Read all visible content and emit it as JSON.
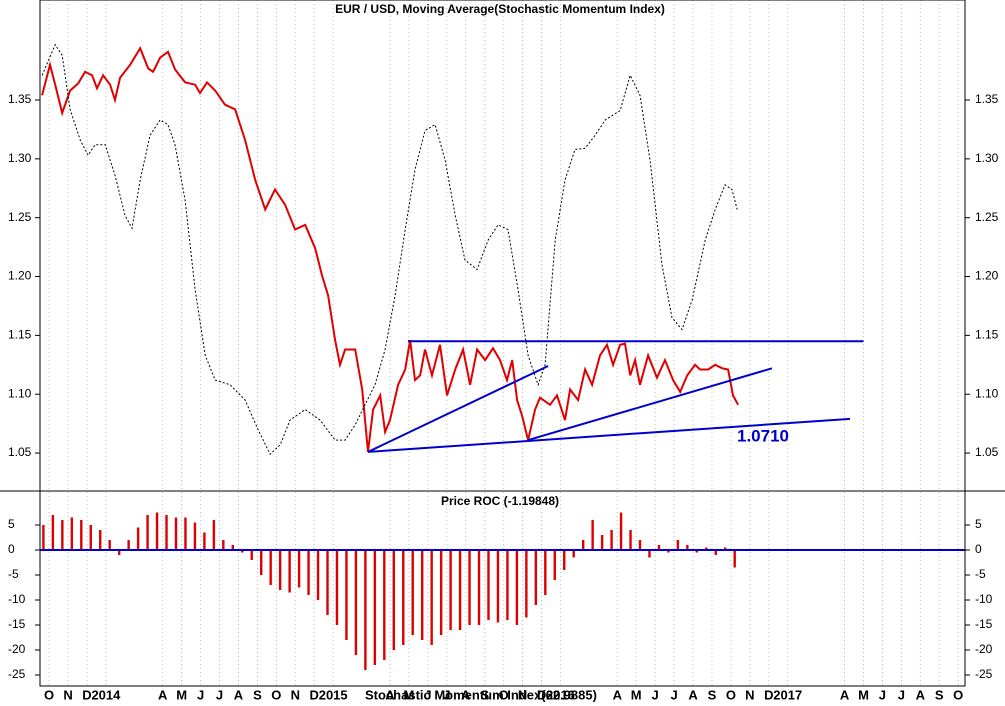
{
  "chart_data": [
    {
      "type": "line",
      "title": "EUR / USD, Moving Average(Stochastic Momentum Index)",
      "xlim": [
        -0.48,
        48.36
      ],
      "ylim": [
        1.0186,
        1.435
      ],
      "yticks": [
        1.05,
        {
          "value": 1.1,
          "label": "1.10"
        },
        1.15,
        {
          "value": 1.2,
          "label": "1.20"
        },
        1.25,
        {
          "value": 1.3,
          "label": "1.30"
        },
        1.35
      ],
      "series": [
        {
          "color": "#e00000",
          "dash": false,
          "x": [
            -0.37,
            0.05,
            0.32,
            0.69,
            1.11,
            1.53,
            1.9,
            2.27,
            2.53,
            2.85,
            3.22,
            3.48,
            3.75,
            4.28,
            4.81,
            5.23,
            5.49,
            5.86,
            6.28,
            6.65,
            7.18,
            7.71,
            7.97,
            8.34,
            8.77,
            9.29,
            9.82,
            10.35,
            10.88,
            11.41,
            11.93,
            12.46,
            12.99,
            13.52,
            14.05,
            14.41,
            14.73,
            15.1,
            15.36,
            15.63,
            16.16,
            16.53,
            16.84,
            17.11,
            17.48,
            17.74,
            18,
            18.43,
            18.8,
            19.06,
            19.32,
            19.59,
            19.85,
            20.22,
            20.64,
            21.01,
            21.44,
            21.86,
            22.23,
            22.6,
            23.02,
            23.44,
            23.81,
            24.18,
            24.45,
            24.71,
            24.97,
            25.29,
            25.66,
            25.92,
            26.45,
            26.82,
            27.24,
            27.51,
            27.93,
            28.3,
            28.67,
            29.09,
            29.46,
            29.78,
            30.15,
            30.41,
            30.68,
            30.94,
            31.2,
            31.63,
            32.1,
            32.52,
            32.95,
            33.32,
            33.69,
            34.11,
            34.37,
            34.8,
            35.17,
            35.54,
            35.85,
            36.11,
            36.38
          ],
          "values": [
            1.354,
            1.38,
            1.363,
            1.339,
            1.358,
            1.364,
            1.374,
            1.371,
            1.36,
            1.371,
            1.363,
            1.35,
            1.369,
            1.38,
            1.394,
            1.377,
            1.374,
            1.386,
            1.391,
            1.376,
            1.365,
            1.363,
            1.356,
            1.365,
            1.358,
            1.346,
            1.342,
            1.316,
            1.282,
            1.257,
            1.274,
            1.261,
            1.24,
            1.244,
            1.224,
            1.201,
            1.184,
            1.146,
            1.125,
            1.138,
            1.138,
            1.104,
            1.051,
            1.087,
            1.099,
            1.068,
            1.078,
            1.108,
            1.121,
            1.146,
            1.112,
            1.116,
            1.138,
            1.116,
            1.142,
            1.099,
            1.121,
            1.138,
            1.108,
            1.138,
            1.129,
            1.139,
            1.129,
            1.112,
            1.129,
            1.095,
            1.082,
            1.061,
            1.087,
            1.097,
            1.091,
            1.099,
            1.078,
            1.104,
            1.095,
            1.121,
            1.108,
            1.133,
            1.142,
            1.125,
            1.142,
            1.143,
            1.116,
            1.129,
            1.108,
            1.133,
            1.114,
            1.129,
            1.112,
            1.102,
            1.116,
            1.125,
            1.121,
            1.121,
            1.125,
            1.122,
            1.121,
            1.099,
            1.091
          ]
        },
        {
          "color": "#000000",
          "dash": true,
          "x": [
            -0.37,
            0.32,
            0.69,
            1.11,
            1.64,
            2.06,
            2.43,
            2.96,
            3.48,
            4.01,
            4.38,
            4.81,
            5.33,
            5.86,
            6.28,
            6.65,
            7.18,
            7.71,
            8.24,
            8.77,
            9.56,
            10.35,
            11.03,
            11.67,
            12.2,
            12.72,
            13.52,
            14.31,
            15.1,
            15.63,
            16.16,
            16.68,
            17.21,
            17.74,
            18.27,
            18.8,
            19.32,
            19.85,
            20.38,
            20.91,
            21.44,
            21.96,
            22.6,
            23.18,
            23.71,
            24.23,
            24.76,
            25.29,
            25.82,
            26.19,
            26.72,
            27.24,
            27.77,
            28.3,
            28.83,
            29.36,
            30.15,
            30.68,
            31.2,
            31.73,
            32.36,
            32.89,
            33.42,
            33.95,
            34.64,
            35.17,
            35.69,
            36.06,
            36.33
          ],
          "values": [
            1.371,
            1.397,
            1.388,
            1.342,
            1.316,
            1.303,
            1.312,
            1.312,
            1.286,
            1.252,
            1.241,
            1.282,
            1.32,
            1.333,
            1.329,
            1.312,
            1.265,
            1.189,
            1.133,
            1.112,
            1.108,
            1.095,
            1.07,
            1.049,
            1.057,
            1.078,
            1.087,
            1.078,
            1.061,
            1.061,
            1.074,
            1.091,
            1.108,
            1.138,
            1.184,
            1.24,
            1.291,
            1.324,
            1.329,
            1.299,
            1.252,
            1.214,
            1.206,
            1.231,
            1.244,
            1.24,
            1.189,
            1.133,
            1.108,
            1.125,
            1.231,
            1.282,
            1.308,
            1.309,
            1.32,
            1.333,
            1.341,
            1.371,
            1.354,
            1.299,
            1.21,
            1.165,
            1.155,
            1.18,
            1.231,
            1.257,
            1.278,
            1.274,
            1.257
          ]
        }
      ],
      "trendlines": {
        "color": "#0000cc",
        "lines": [
          {
            "x": [
              18.95,
              43.0
            ],
            "values": [
              1.145,
              1.145
            ]
          },
          {
            "x": [
              16.84,
              26.35
            ],
            "values": [
              1.051,
              1.124
            ]
          },
          {
            "x": [
              25.29,
              38.17
            ],
            "values": [
              1.061,
              1.122
            ]
          },
          {
            "x": [
              16.84,
              42.29
            ],
            "values": [
              1.051,
              1.079
            ]
          }
        ]
      },
      "annotation": "1.0710"
    },
    {
      "type": "bar",
      "title": "Price ROC (-1.19848)",
      "color": "#dd0000",
      "xlim": [
        -0.48,
        48.36
      ],
      "ylim": [
        -27.2,
        11.6
      ],
      "yticks": [
        5,
        0,
        -5,
        -10,
        -15,
        -20,
        -25
      ],
      "zero_line": {
        "value": 0,
        "color": "#0000cc"
      },
      "grid": true,
      "x": [
        -0.3,
        0.2,
        0.7,
        1.2,
        1.7,
        2.2,
        2.7,
        3.2,
        3.7,
        4.2,
        4.7,
        5.2,
        5.7,
        6.2,
        6.7,
        7.2,
        7.7,
        8.2,
        8.7,
        9.2,
        9.7,
        10.2,
        10.7,
        11.2,
        11.7,
        12.2,
        12.7,
        13.2,
        13.7,
        14.2,
        14.7,
        15.2,
        15.7,
        16.2,
        16.7,
        17.2,
        17.7,
        18.2,
        18.7,
        19.2,
        19.7,
        20.2,
        20.7,
        21.2,
        21.7,
        22.2,
        22.7,
        23.2,
        23.7,
        24.2,
        24.7,
        25.2,
        25.7,
        26.2,
        26.7,
        27.2,
        27.7,
        28.2,
        28.7,
        29.2,
        29.7,
        30.2,
        30.7,
        31.2,
        31.7,
        32.2,
        32.7,
        33.2,
        33.7,
        34.2,
        34.7,
        35.2,
        35.7,
        36.2
      ],
      "values": [
        5,
        7,
        6,
        6.5,
        6,
        5,
        4,
        2,
        -1,
        2,
        4.5,
        7,
        7.5,
        7,
        6.5,
        6.5,
        5.5,
        3.5,
        6,
        2,
        1,
        -0.5,
        -2,
        -5,
        -7,
        -8,
        -8.5,
        -7.5,
        -9,
        -10,
        -13,
        -15,
        -18,
        -21,
        -24,
        -23,
        -22,
        -20,
        -19,
        -17,
        -18,
        -19,
        -17,
        -16,
        -16,
        -15,
        -15,
        -14,
        -14.5,
        -14,
        -15,
        -13.5,
        -11,
        -9,
        -6,
        -4,
        -1.5,
        2,
        6,
        3,
        4,
        7.5,
        4,
        2,
        -1.5,
        1,
        -0.5,
        2,
        1,
        -0.5,
        0.5,
        -1,
        0.5,
        -3.5
      ],
      "xticks": [
        {
          "value": 0,
          "label": "O"
        },
        {
          "value": 1,
          "label": "N"
        },
        {
          "value": 2,
          "label": "D"
        },
        {
          "value": 3,
          "label": "2014"
        },
        {
          "value": 6,
          "label": "A"
        },
        {
          "value": 7,
          "label": "M"
        },
        {
          "value": 8,
          "label": "J"
        },
        {
          "value": 9,
          "label": "J"
        },
        {
          "value": 10,
          "label": "A"
        },
        {
          "value": 11,
          "label": "S"
        },
        {
          "value": 12,
          "label": "O"
        },
        {
          "value": 13,
          "label": "N"
        },
        {
          "value": 14,
          "label": "D"
        },
        {
          "value": 15,
          "label": "2015"
        },
        {
          "value": 18,
          "label": "A"
        },
        {
          "value": 19,
          "label": "M"
        },
        {
          "value": 20,
          "label": "J"
        },
        {
          "value": 21,
          "label": "J"
        },
        {
          "value": 22,
          "label": "A"
        },
        {
          "value": 23,
          "label": "S"
        },
        {
          "value": 24,
          "label": "O"
        },
        {
          "value": 25,
          "label": "N"
        },
        {
          "value": 26,
          "label": "D"
        },
        {
          "value": 27,
          "label": "2016"
        },
        {
          "value": 30,
          "label": "A"
        },
        {
          "value": 31,
          "label": "M"
        },
        {
          "value": 32,
          "label": "J"
        },
        {
          "value": 33,
          "label": "J"
        },
        {
          "value": 34,
          "label": "A"
        },
        {
          "value": 35,
          "label": "S"
        },
        {
          "value": 36,
          "label": "O"
        },
        {
          "value": 37,
          "label": "N"
        },
        {
          "value": 38,
          "label": "D"
        },
        {
          "value": 39,
          "label": "2017"
        },
        {
          "value": 42,
          "label": "A"
        },
        {
          "value": 43,
          "label": "M"
        },
        {
          "value": 44,
          "label": "J"
        },
        {
          "value": 45,
          "label": "J"
        },
        {
          "value": 46,
          "label": "A"
        },
        {
          "value": 47,
          "label": "S"
        },
        {
          "value": 48,
          "label": "O"
        }
      ],
      "annotation": "Stochastic Momentum Index(62.9885)"
    }
  ]
}
